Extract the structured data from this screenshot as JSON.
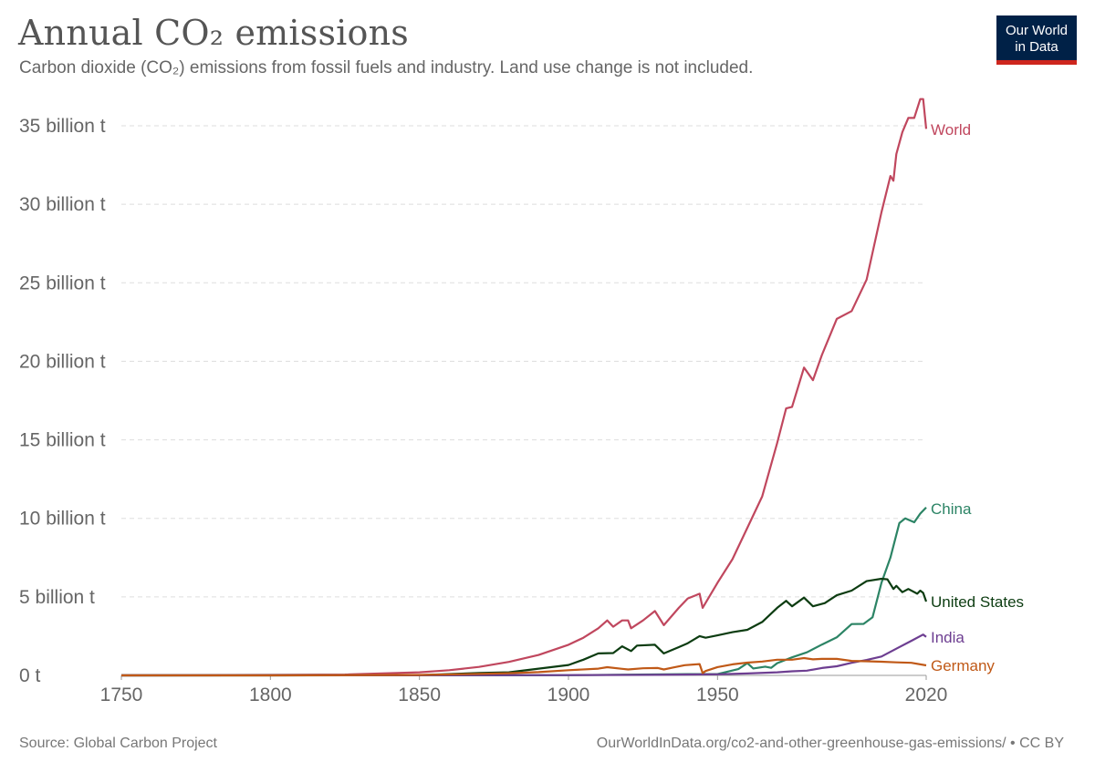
{
  "title": "Annual CO₂ emissions",
  "subtitle": "Carbon dioxide (CO₂) emissions from fossil fuels and industry. Land use change is not included.",
  "logo": {
    "line1": "Our World",
    "line2": "in Data"
  },
  "footer": {
    "source": "Source: Global Carbon Project",
    "url": "OurWorldInDataorg/co2-and-other-greenhouse-gas-emissions/ • CC BY"
  },
  "chart_data": {
    "type": "line",
    "title": "Annual CO₂ emissions",
    "unit": "t",
    "xlim": [
      1750,
      2020
    ],
    "ylim": [
      0,
      36000000000
    ],
    "x_ticks": [
      1750,
      1800,
      1850,
      1900,
      1950,
      2020
    ],
    "y_ticks": [
      {
        "value": 0,
        "label": "0 t"
      },
      {
        "value": 5000000000,
        "label": "5 billion t"
      },
      {
        "value": 10000000000,
        "label": "10 billion t"
      },
      {
        "value": 15000000000,
        "label": "15 billion t"
      },
      {
        "value": 20000000000,
        "label": "20 billion t"
      },
      {
        "value": 25000000000,
        "label": "25 billion t"
      },
      {
        "value": 30000000000,
        "label": "30 billion t"
      },
      {
        "value": 35000000000,
        "label": "35 billion t"
      }
    ],
    "grid": true,
    "legend": "line-end labels",
    "series": [
      {
        "name": "World",
        "color": "#c0475e",
        "points": [
          [
            1750,
            9000000
          ],
          [
            1775,
            16000000
          ],
          [
            1800,
            28000000
          ],
          [
            1825,
            50000000
          ],
          [
            1850,
            200000000
          ],
          [
            1860,
            330000000
          ],
          [
            1870,
            540000000
          ],
          [
            1880,
            860000000
          ],
          [
            1890,
            1300000000
          ],
          [
            1900,
            1950000000
          ],
          [
            1905,
            2400000000
          ],
          [
            1910,
            3000000000
          ],
          [
            1913,
            3500000000
          ],
          [
            1915,
            3100000000
          ],
          [
            1918,
            3500000000
          ],
          [
            1920,
            3500000000
          ],
          [
            1921,
            3000000000
          ],
          [
            1925,
            3500000000
          ],
          [
            1929,
            4100000000
          ],
          [
            1932,
            3200000000
          ],
          [
            1937,
            4300000000
          ],
          [
            1940,
            4900000000
          ],
          [
            1944,
            5200000000
          ],
          [
            1945,
            4300000000
          ],
          [
            1950,
            5900000000
          ],
          [
            1955,
            7400000000
          ],
          [
            1960,
            9400000000
          ],
          [
            1965,
            11400000000
          ],
          [
            1970,
            14800000000
          ],
          [
            1973,
            17000000000
          ],
          [
            1975,
            17100000000
          ],
          [
            1979,
            19600000000
          ],
          [
            1982,
            18800000000
          ],
          [
            1985,
            20400000000
          ],
          [
            1990,
            22700000000
          ],
          [
            1995,
            23200000000
          ],
          [
            2000,
            25200000000
          ],
          [
            2005,
            29500000000
          ],
          [
            2008,
            31800000000
          ],
          [
            2009,
            31500000000
          ],
          [
            2010,
            33200000000
          ],
          [
            2012,
            34600000000
          ],
          [
            2014,
            35500000000
          ],
          [
            2016,
            35500000000
          ],
          [
            2018,
            36700000000
          ],
          [
            2019,
            36700000000
          ],
          [
            2020,
            34800000000
          ]
        ]
      },
      {
        "name": "China",
        "color": "#2c8465",
        "points": [
          [
            1750,
            0
          ],
          [
            1900,
            10000000
          ],
          [
            1940,
            80000000
          ],
          [
            1950,
            80000000
          ],
          [
            1957,
            400000000
          ],
          [
            1960,
            780000000
          ],
          [
            1962,
            440000000
          ],
          [
            1966,
            560000000
          ],
          [
            1968,
            480000000
          ],
          [
            1970,
            780000000
          ],
          [
            1975,
            1150000000
          ],
          [
            1980,
            1470000000
          ],
          [
            1985,
            1960000000
          ],
          [
            1990,
            2420000000
          ],
          [
            1995,
            3270000000
          ],
          [
            1999,
            3280000000
          ],
          [
            2002,
            3700000000
          ],
          [
            2005,
            5900000000
          ],
          [
            2008,
            7500000000
          ],
          [
            2011,
            9700000000
          ],
          [
            2013,
            10000000000
          ],
          [
            2016,
            9750000000
          ],
          [
            2018,
            10300000000
          ],
          [
            2020,
            10700000000
          ]
        ]
      },
      {
        "name": "United States",
        "color": "#0c3c11",
        "points": [
          [
            1750,
            0
          ],
          [
            1800,
            1000000
          ],
          [
            1850,
            20000000
          ],
          [
            1870,
            150000000
          ],
          [
            1880,
            200000000
          ],
          [
            1890,
            430000000
          ],
          [
            1900,
            660000000
          ],
          [
            1905,
            1000000000
          ],
          [
            1910,
            1400000000
          ],
          [
            1915,
            1420000000
          ],
          [
            1918,
            1850000000
          ],
          [
            1921,
            1550000000
          ],
          [
            1923,
            1900000000
          ],
          [
            1929,
            1950000000
          ],
          [
            1932,
            1400000000
          ],
          [
            1937,
            1800000000
          ],
          [
            1940,
            2050000000
          ],
          [
            1944,
            2500000000
          ],
          [
            1946,
            2400000000
          ],
          [
            1950,
            2550000000
          ],
          [
            1955,
            2750000000
          ],
          [
            1960,
            2900000000
          ],
          [
            1965,
            3400000000
          ],
          [
            1970,
            4300000000
          ],
          [
            1973,
            4750000000
          ],
          [
            1975,
            4400000000
          ],
          [
            1979,
            4950000000
          ],
          [
            1982,
            4400000000
          ],
          [
            1986,
            4600000000
          ],
          [
            1990,
            5100000000
          ],
          [
            1995,
            5400000000
          ],
          [
            2000,
            6000000000
          ],
          [
            2005,
            6150000000
          ],
          [
            2007,
            6120000000
          ],
          [
            2009,
            5500000000
          ],
          [
            2010,
            5700000000
          ],
          [
            2012,
            5300000000
          ],
          [
            2014,
            5500000000
          ],
          [
            2017,
            5200000000
          ],
          [
            2018,
            5400000000
          ],
          [
            2019,
            5250000000
          ],
          [
            2020,
            4700000000
          ]
        ]
      },
      {
        "name": "India",
        "color": "#6d3e91",
        "points": [
          [
            1750,
            0
          ],
          [
            1900,
            20000000
          ],
          [
            1930,
            35000000
          ],
          [
            1950,
            70000000
          ],
          [
            1960,
            120000000
          ],
          [
            1970,
            200000000
          ],
          [
            1975,
            260000000
          ],
          [
            1980,
            300000000
          ],
          [
            1985,
            470000000
          ],
          [
            1990,
            580000000
          ],
          [
            1995,
            800000000
          ],
          [
            2000,
            980000000
          ],
          [
            2005,
            1200000000
          ],
          [
            2010,
            1700000000
          ],
          [
            2015,
            2200000000
          ],
          [
            2019,
            2600000000
          ],
          [
            2020,
            2450000000
          ]
        ]
      },
      {
        "name": "Germany",
        "color": "#c05917",
        "points": [
          [
            1750,
            0
          ],
          [
            1800,
            2000000
          ],
          [
            1850,
            28000000
          ],
          [
            1870,
            90000000
          ],
          [
            1880,
            140000000
          ],
          [
            1890,
            210000000
          ],
          [
            1900,
            330000000
          ],
          [
            1910,
            430000000
          ],
          [
            1913,
            520000000
          ],
          [
            1918,
            420000000
          ],
          [
            1920,
            380000000
          ],
          [
            1925,
            450000000
          ],
          [
            1930,
            470000000
          ],
          [
            1932,
            380000000
          ],
          [
            1935,
            500000000
          ],
          [
            1939,
            650000000
          ],
          [
            1944,
            720000000
          ],
          [
            1945,
            150000000
          ],
          [
            1946,
            280000000
          ],
          [
            1950,
            530000000
          ],
          [
            1955,
            700000000
          ],
          [
            1960,
            810000000
          ],
          [
            1965,
            880000000
          ],
          [
            1970,
            1000000000
          ],
          [
            1975,
            1000000000
          ],
          [
            1979,
            1100000000
          ],
          [
            1982,
            1020000000
          ],
          [
            1985,
            1050000000
          ],
          [
            1990,
            1050000000
          ],
          [
            1995,
            920000000
          ],
          [
            2000,
            900000000
          ],
          [
            2005,
            870000000
          ],
          [
            2010,
            830000000
          ],
          [
            2015,
            800000000
          ],
          [
            2020,
            640000000
          ]
        ]
      }
    ]
  }
}
